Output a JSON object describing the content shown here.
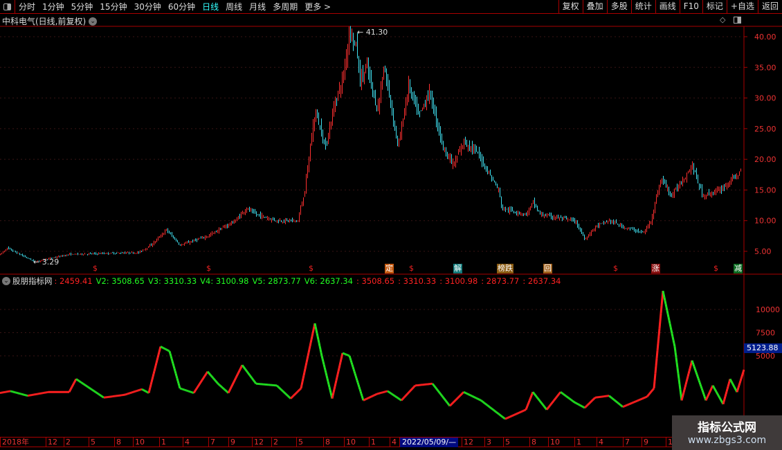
{
  "toolbar": {
    "periods": [
      "分时",
      "1分钟",
      "5分钟",
      "15分钟",
      "30分钟",
      "60分钟",
      "日线",
      "周线",
      "月线",
      "多周期",
      "更多 >"
    ],
    "active": "日线",
    "right_buttons": [
      "复权",
      "叠加",
      "多股",
      "统计",
      "画线",
      "F10",
      "标记",
      "+自选",
      "返回"
    ]
  },
  "main_title": "中科电气(日线,前复权)",
  "price_axis": {
    "ticks": [
      "40.00",
      "35.00",
      "30.00",
      "25.00",
      "20.00",
      "15.00",
      "10.00",
      "5.00"
    ],
    "values": [
      40,
      35,
      30,
      25,
      20,
      15,
      10,
      5
    ]
  },
  "price_annotations": {
    "high": "41.30",
    "low": "3.29"
  },
  "price_key_points": [
    [
      0,
      4.5
    ],
    [
      10,
      5.5
    ],
    [
      50,
      3.3
    ],
    [
      100,
      4.5
    ],
    [
      200,
      4.8
    ],
    [
      220,
      6.2
    ],
    [
      240,
      8.5
    ],
    [
      260,
      6
    ],
    [
      300,
      7.5
    ],
    [
      340,
      10
    ],
    [
      355,
      12
    ],
    [
      370,
      11
    ],
    [
      400,
      10
    ],
    [
      430,
      10
    ],
    [
      440,
      15
    ],
    [
      455,
      28
    ],
    [
      470,
      22
    ],
    [
      485,
      30
    ],
    [
      495,
      33
    ],
    [
      505,
      41.3
    ],
    [
      515,
      38
    ],
    [
      520,
      33
    ],
    [
      530,
      35
    ],
    [
      545,
      28
    ],
    [
      555,
      35
    ],
    [
      575,
      22
    ],
    [
      590,
      32
    ],
    [
      605,
      27
    ],
    [
      620,
      31
    ],
    [
      640,
      22
    ],
    [
      655,
      19
    ],
    [
      670,
      23
    ],
    [
      690,
      21
    ],
    [
      720,
      15
    ],
    [
      725,
      12
    ],
    [
      760,
      11
    ],
    [
      770,
      13
    ],
    [
      780,
      11
    ],
    [
      830,
      10
    ],
    [
      845,
      7
    ],
    [
      860,
      9
    ],
    [
      880,
      10
    ],
    [
      900,
      9
    ],
    [
      930,
      8
    ],
    [
      940,
      10
    ],
    [
      955,
      17
    ],
    [
      970,
      14
    ],
    [
      1000,
      19
    ],
    [
      1015,
      14
    ],
    [
      1040,
      15
    ],
    [
      1070,
      18
    ]
  ],
  "signals": [
    {
      "t": "$",
      "c": "#e22",
      "bg": ""
    },
    {
      "t": "$",
      "c": "#e22",
      "bg": ""
    },
    {
      "t": "$",
      "c": "#e22",
      "bg": ""
    },
    {
      "t": "定",
      "c": "#fff",
      "bg": "#c55a11"
    },
    {
      "t": "$",
      "c": "#e22",
      "bg": ""
    },
    {
      "t": "解",
      "c": "#fff",
      "bg": "#117a7a"
    },
    {
      "t": "榜跌",
      "c": "#fff",
      "bg": "#8a5a10"
    },
    {
      "t": "回",
      "c": "#fff",
      "bg": "#a0601a"
    },
    {
      "t": "$",
      "c": "#e22",
      "bg": ""
    },
    {
      "t": "涨",
      "c": "#fff",
      "bg": "#8a1010"
    },
    {
      "t": "$",
      "c": "#e22",
      "bg": ""
    },
    {
      "t": "减",
      "c": "#fff",
      "bg": "#0a6a20"
    }
  ],
  "indicator": {
    "name": "股朋指标网",
    "values": [
      ": 2459.41",
      "V2: 3508.65",
      "V3: 3310.33",
      "V4: 3100.98",
      "V5: 2873.77",
      "V6: 2637.34",
      ": 3508.65",
      ": 3310.33",
      ": 3100.98",
      ": 2873.77",
      ": 2637.34"
    ],
    "value_colors": [
      "#f22",
      "#2f2",
      "#2f2",
      "#2f2",
      "#2f2",
      "#2f2",
      "#f22",
      "#f22",
      "#f22",
      "#f22",
      "#f22"
    ],
    "axis": {
      "ticks": [
        "10000",
        "7500",
        "5000"
      ],
      "values": [
        10000,
        7500,
        5000
      ]
    },
    "current": "5123.88"
  },
  "chart_data": {
    "type": "line",
    "series": [
      {
        "values_key_points": [
          [
            0,
            1000
          ],
          [
            15,
            1200
          ],
          [
            40,
            700
          ],
          [
            70,
            1100
          ],
          [
            100,
            1100
          ],
          [
            110,
            2500
          ],
          [
            130,
            1500
          ],
          [
            150,
            500
          ],
          [
            180,
            800
          ],
          [
            205,
            1400
          ],
          [
            215,
            1000
          ],
          [
            232,
            6000
          ],
          [
            245,
            5500
          ],
          [
            260,
            1500
          ],
          [
            280,
            1000
          ],
          [
            300,
            3300
          ],
          [
            315,
            2000
          ],
          [
            330,
            1000
          ],
          [
            350,
            4000
          ],
          [
            370,
            2000
          ],
          [
            400,
            1800
          ],
          [
            420,
            400
          ],
          [
            435,
            1500
          ],
          [
            455,
            8500
          ],
          [
            465,
            5000
          ],
          [
            480,
            400
          ],
          [
            495,
            5300
          ],
          [
            505,
            5000
          ],
          [
            525,
            200
          ],
          [
            545,
            900
          ],
          [
            560,
            1200
          ],
          [
            580,
            200
          ],
          [
            600,
            1800
          ],
          [
            625,
            2000
          ],
          [
            650,
            -400
          ],
          [
            670,
            1100
          ],
          [
            695,
            200
          ],
          [
            730,
            -1800
          ],
          [
            760,
            -800
          ],
          [
            770,
            1100
          ],
          [
            790,
            -800
          ],
          [
            810,
            1100
          ],
          [
            830,
            0
          ],
          [
            845,
            -600
          ],
          [
            860,
            500
          ],
          [
            880,
            700
          ],
          [
            900,
            -500
          ],
          [
            935,
            600
          ],
          [
            945,
            1500
          ],
          [
            958,
            12000
          ],
          [
            975,
            6000
          ],
          [
            985,
            200
          ],
          [
            1000,
            4500
          ],
          [
            1020,
            200
          ],
          [
            1030,
            1800
          ],
          [
            1045,
            -200
          ],
          [
            1055,
            2500
          ],
          [
            1065,
            1100
          ],
          [
            1075,
            3500
          ]
        ]
      }
    ],
    "up_color": "#ff2020",
    "down_color": "#20e020"
  },
  "timeline": [
    "2018年",
    "12",
    "2",
    "5",
    "8",
    "10",
    "1",
    "4",
    "7",
    "9",
    "12",
    "2",
    "5",
    "8",
    "10",
    "1",
    "4",
    "2022/05/09/—",
    "12",
    "3",
    "5",
    "8",
    "10",
    "1",
    "4",
    "7",
    "9",
    "1"
  ],
  "watermark": {
    "line1": "指标公式网",
    "line2": "www.zbgs3.com"
  }
}
